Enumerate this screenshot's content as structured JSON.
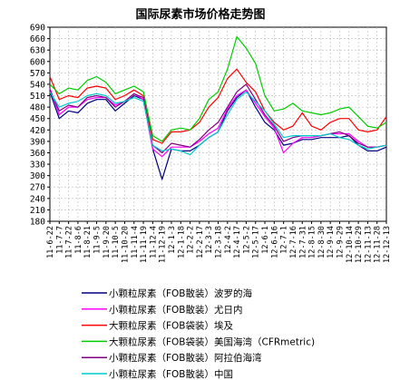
{
  "chart_data": {
    "type": "line",
    "title": "国际尿素市场价格走势图",
    "xlabel": "",
    "ylabel": "",
    "ylim": [
      180,
      690
    ],
    "yticks": [
      180,
      210,
      240,
      270,
      300,
      330,
      360,
      390,
      420,
      450,
      480,
      510,
      540,
      570,
      600,
      630,
      660,
      690
    ],
    "categories": [
      "11-6-22",
      "11-7-7",
      "11-7-22",
      "11-8-6",
      "11-8-21",
      "11-9-5",
      "11-9-20",
      "11-10-5",
      "11-10-20",
      "11-11-4",
      "11-11-19",
      "11-12-4",
      "11-12-19",
      "12-1-3",
      "12-1-18",
      "12-2-2",
      "12-2-17",
      "12-3-3",
      "12-3-18",
      "12-4-2",
      "12-4-17",
      "12-5-2",
      "12-5-17",
      "12-6-1",
      "12-6-16",
      "12-7-1",
      "12-7-16",
      "12-7-31",
      "12-8-15",
      "12-8-30",
      "12-9-14",
      "12-9-29",
      "12-10-14",
      "12-10-29",
      "12-11-13",
      "12-11-28",
      "12-12-13"
    ],
    "grid": true,
    "legend_position": "bottom",
    "series": [
      {
        "name": "小颗粒尿素（FOB散装）波罗的海",
        "color": "#000080",
        "values": [
          520,
          450,
          470,
          465,
          490,
          500,
          500,
          470,
          490,
          510,
          500,
          370,
          290,
          370,
          365,
          365,
          380,
          400,
          415,
          470,
          505,
          525,
          480,
          440,
          420,
          380,
          385,
          395,
          395,
          400,
          400,
          400,
          405,
          380,
          365,
          365,
          375
        ]
      },
      {
        "name": "小颗粒尿素（FOB散装）尤日内",
        "color": "#FF00FF",
        "values": [
          530,
          460,
          480,
          480,
          500,
          505,
          505,
          485,
          495,
          515,
          500,
          370,
          350,
          375,
          375,
          375,
          390,
          410,
          425,
          475,
          510,
          525,
          490,
          455,
          425,
          360,
          385,
          400,
          400,
          405,
          410,
          410,
          410,
          390,
          375,
          375,
          380
        ]
      },
      {
        "name": "大颗粒尿素（FOB袋装）埃及",
        "color": "#FF0000",
        "values": [
          560,
          500,
          510,
          505,
          530,
          535,
          530,
          500,
          510,
          525,
          510,
          395,
          385,
          415,
          415,
          420,
          440,
          480,
          505,
          555,
          580,
          545,
          520,
          470,
          440,
          420,
          430,
          465,
          430,
          420,
          440,
          450,
          450,
          420,
          415,
          420,
          455
        ]
      },
      {
        "name": "大颗粒尿素（FOB袋装）美国海湾（CFRmetric)",
        "color": "#00CC00",
        "values": [
          540,
          515,
          530,
          525,
          550,
          560,
          545,
          515,
          525,
          535,
          520,
          405,
          390,
          420,
          425,
          420,
          450,
          500,
          520,
          580,
          665,
          635,
          595,
          510,
          470,
          475,
          490,
          470,
          465,
          460,
          465,
          475,
          480,
          455,
          430,
          425,
          440
        ]
      },
      {
        "name": "小颗粒尿素（FOB散装）阿拉伯海湾",
        "color": "#800080",
        "values": [
          525,
          470,
          485,
          480,
          505,
          510,
          505,
          480,
          495,
          515,
          505,
          380,
          360,
          385,
          380,
          375,
          395,
          420,
          440,
          480,
          520,
          540,
          500,
          460,
          430,
          390,
          400,
          405,
          405,
          405,
          410,
          415,
          405,
          385,
          375,
          375,
          380
        ]
      },
      {
        "name": "小颗粒尿素（FOB散装）中国",
        "color": "#00CCCC",
        "values": [
          520,
          480,
          490,
          495,
          510,
          515,
          510,
          490,
          495,
          505,
          495,
          380,
          365,
          370,
          365,
          355,
          380,
          400,
          415,
          460,
          500,
          520,
          495,
          470,
          435,
          400,
          405,
          405,
          405,
          405,
          410,
          400,
          395,
          380,
          370,
          375,
          380
        ]
      }
    ]
  }
}
